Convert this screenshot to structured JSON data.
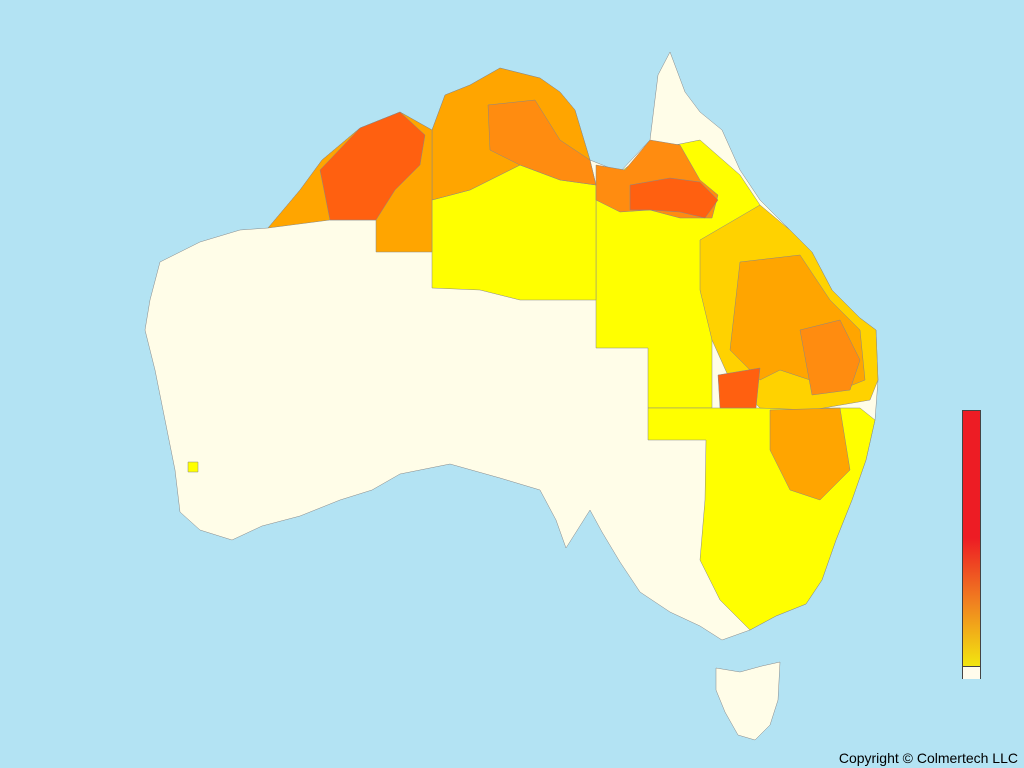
{
  "map": {
    "colors": {
      "water": "#b3e3f3",
      "no_data": "#fffde8",
      "low": "#ffff00",
      "low_mid": "#ffd200",
      "mid": "#ffa500",
      "mid_high": "#ff8c10",
      "high": "#ff6010",
      "max": "#ed1c24"
    }
  },
  "legend": {
    "top_color": "#ed1c24",
    "mid_color": "#f08020",
    "bottom_color": "#f2e610",
    "empty_color": "#fffcec"
  },
  "footer": {
    "copyright": "Copyright © Colmertech LLC"
  }
}
